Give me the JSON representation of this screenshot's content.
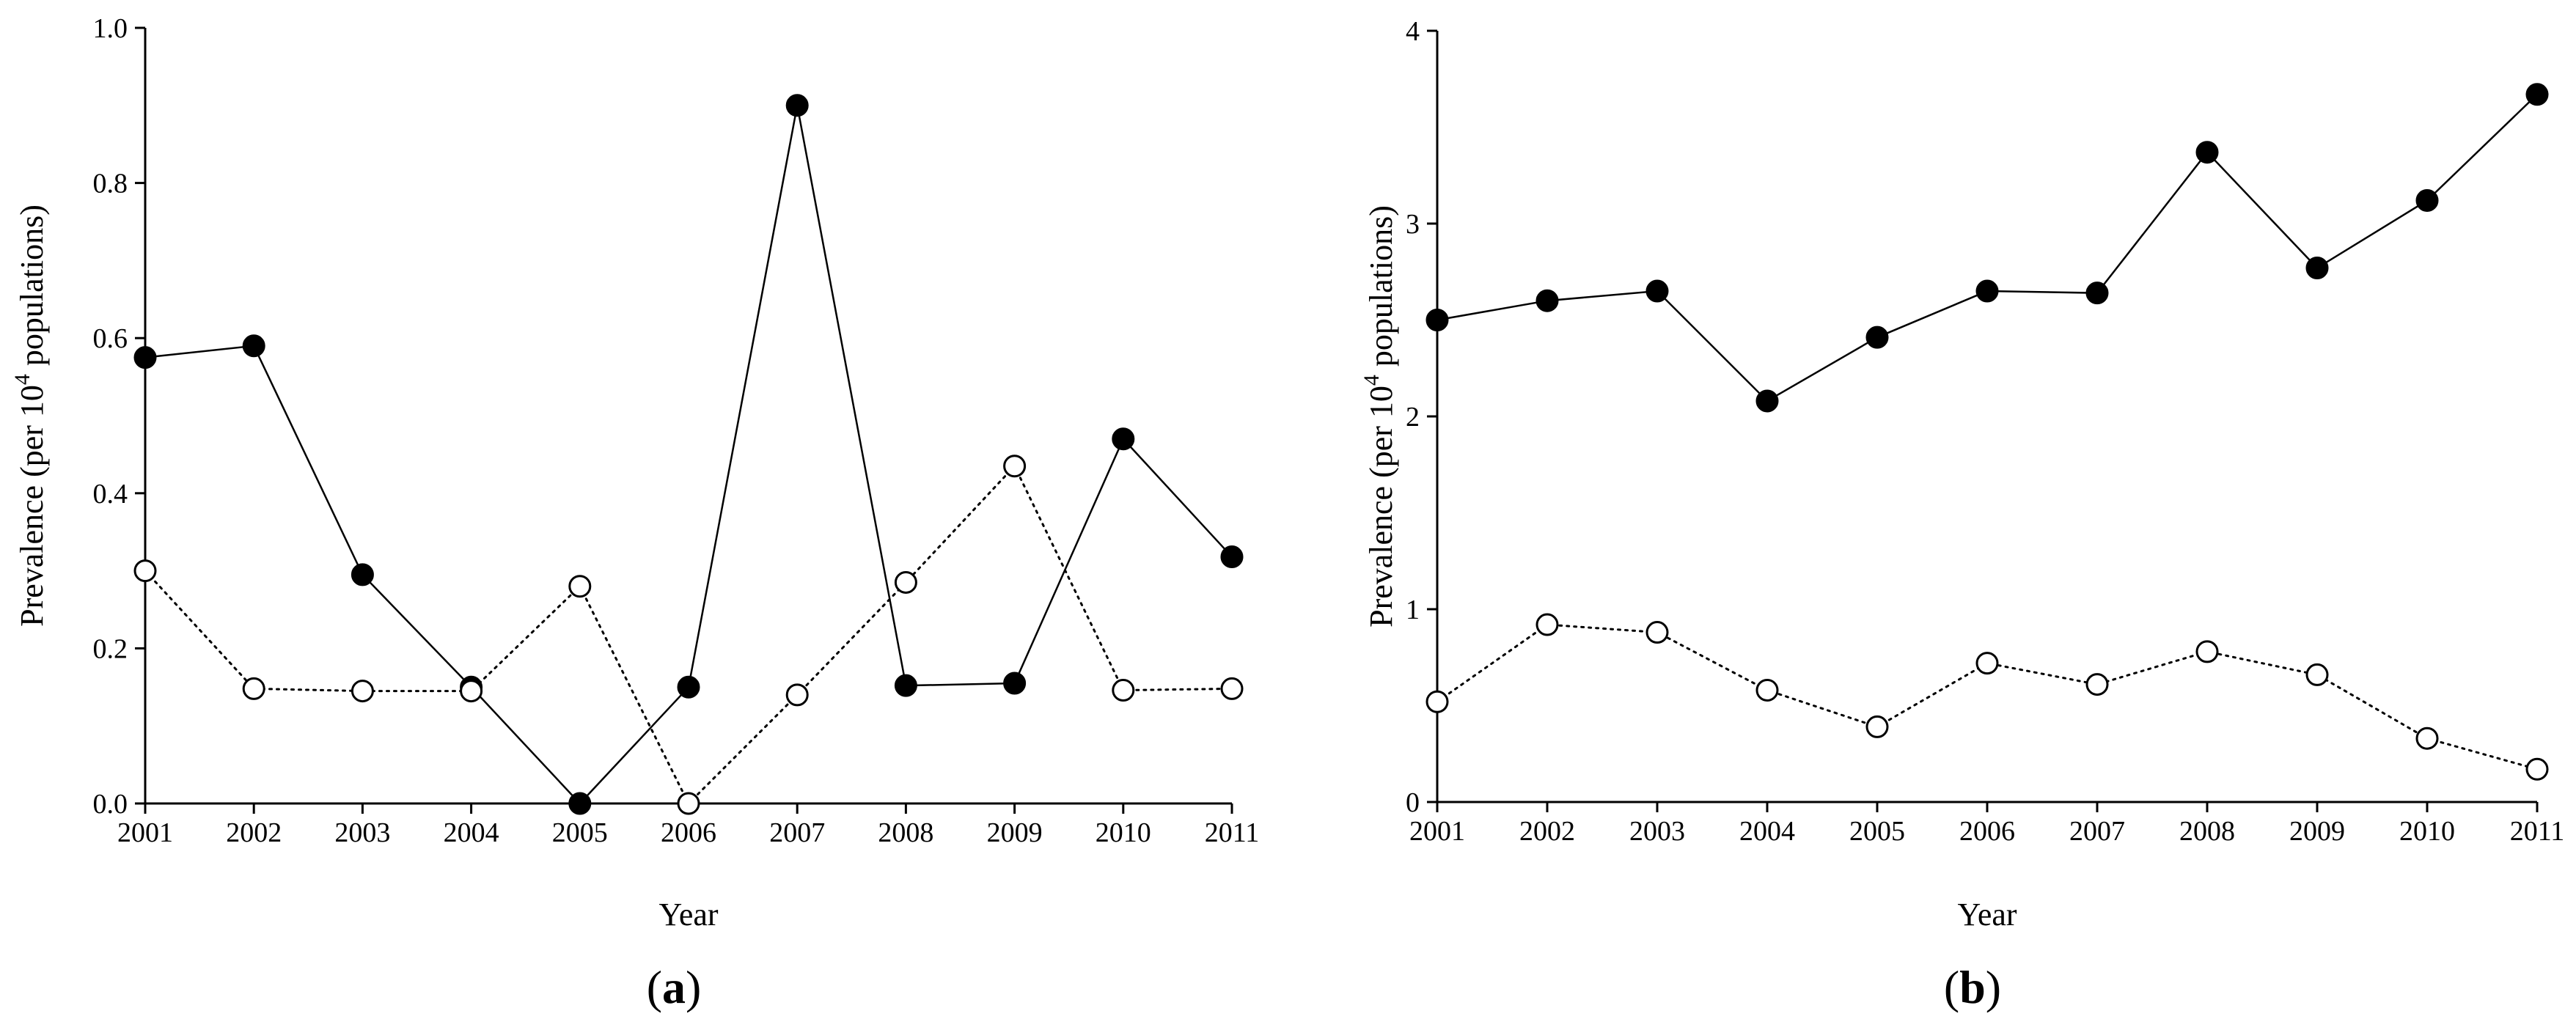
{
  "chart_data": [
    {
      "type": "line",
      "panel_label": "(a)",
      "panel_letter": "a",
      "xlabel": "Year",
      "ylabel": "Prevalence (per 10",
      "ylabel_sup": "4",
      "ylabel_tail": " populations)",
      "ylim": [
        0,
        1.0
      ],
      "yticks": [
        "0.0",
        "0.2",
        "0.4",
        "0.6",
        "0.8",
        "1.0"
      ],
      "yticks_values": [
        0,
        0.2,
        0.4,
        0.6,
        0.8,
        1.0
      ],
      "x": [
        "2001",
        "2002",
        "2003",
        "2004",
        "2005",
        "2006",
        "2007",
        "2008",
        "2009",
        "2010",
        "2011"
      ],
      "grid": false,
      "series": [
        {
          "style": "solid line, filled circles",
          "color": "#000000",
          "values": [
            0.575,
            0.59,
            0.295,
            0.15,
            0.0,
            0.15,
            0.9,
            0.152,
            0.155,
            0.47,
            0.318
          ]
        },
        {
          "style": "dotted line, open circles",
          "color": "#000000",
          "values": [
            0.3,
            0.148,
            0.145,
            0.145,
            0.28,
            0.0,
            0.14,
            0.285,
            0.435,
            0.146,
            0.148
          ]
        }
      ]
    },
    {
      "type": "line",
      "panel_label": "(b)",
      "panel_letter": "b",
      "xlabel": "Year",
      "ylabel": "Prevalence (per 10",
      "ylabel_sup": "4",
      "ylabel_tail": " populations)",
      "ylim": [
        0,
        4
      ],
      "yticks": [
        "0",
        "1",
        "2",
        "3",
        "4"
      ],
      "yticks_values": [
        0,
        1,
        2,
        3,
        4
      ],
      "x": [
        "2001",
        "2002",
        "2003",
        "2004",
        "2005",
        "2006",
        "2007",
        "2008",
        "2009",
        "2010",
        "2011"
      ],
      "grid": false,
      "series": [
        {
          "style": "solid line, filled circles",
          "color": "#000000",
          "values": [
            2.5,
            2.6,
            2.65,
            2.08,
            2.41,
            2.65,
            2.64,
            3.37,
            2.77,
            3.12,
            3.67
          ]
        },
        {
          "style": "dotted line, open circles",
          "color": "#000000",
          "values": [
            0.52,
            0.92,
            0.88,
            0.58,
            0.39,
            0.72,
            0.61,
            0.78,
            0.66,
            0.33,
            0.17
          ]
        }
      ]
    }
  ]
}
